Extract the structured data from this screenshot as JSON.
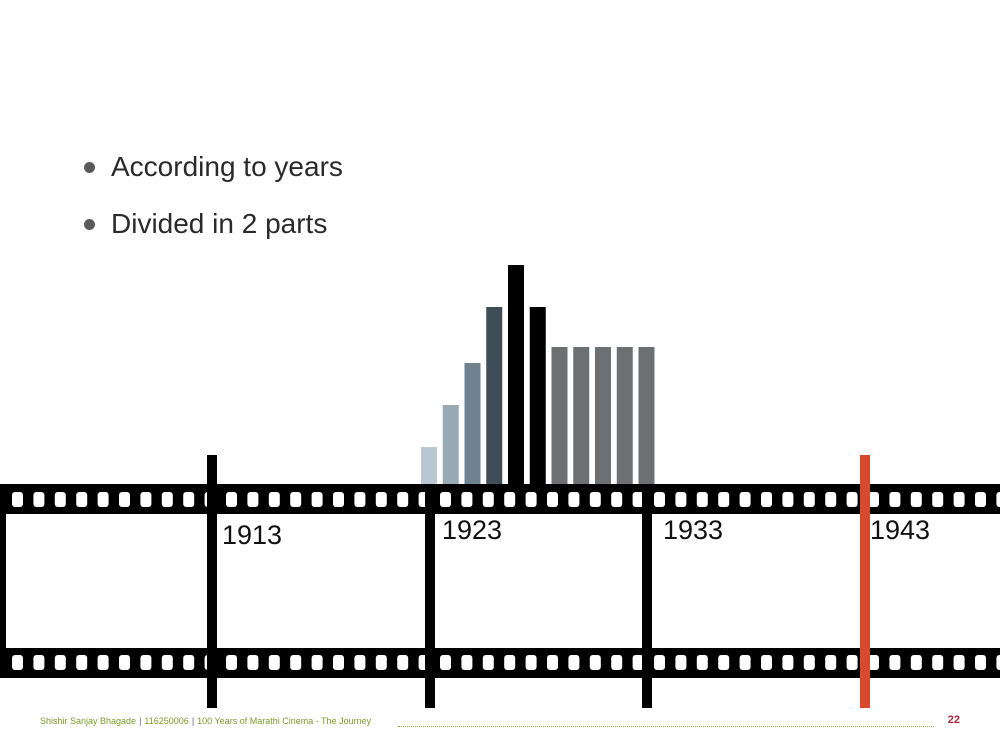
{
  "bullets": [
    {
      "text": "According to years"
    },
    {
      "text": "Divided in 2 parts"
    }
  ],
  "timeline": {
    "years": [
      "1913",
      "1923",
      "1933",
      "1943"
    ],
    "highlight_year": "1943",
    "highlight_color": "#d84a2e",
    "strip_color": "#000000"
  },
  "bar_cluster": {
    "values": [
      38,
      80,
      122,
      178,
      220,
      178,
      138,
      138,
      138,
      138,
      138
    ],
    "colors": [
      "#b9c8d2",
      "#97a9b5",
      "#6f8290",
      "#3f4d59",
      "#000000",
      "#000000",
      "#6d7073",
      "#6d7073",
      "#6d7073",
      "#6d7073",
      "#6d7073"
    ]
  },
  "footer": {
    "author": "Shishir Sanjay Bhagade",
    "id": "116250006",
    "title": "100 Years of Marathi Cinema - The Journey",
    "page": "22"
  }
}
